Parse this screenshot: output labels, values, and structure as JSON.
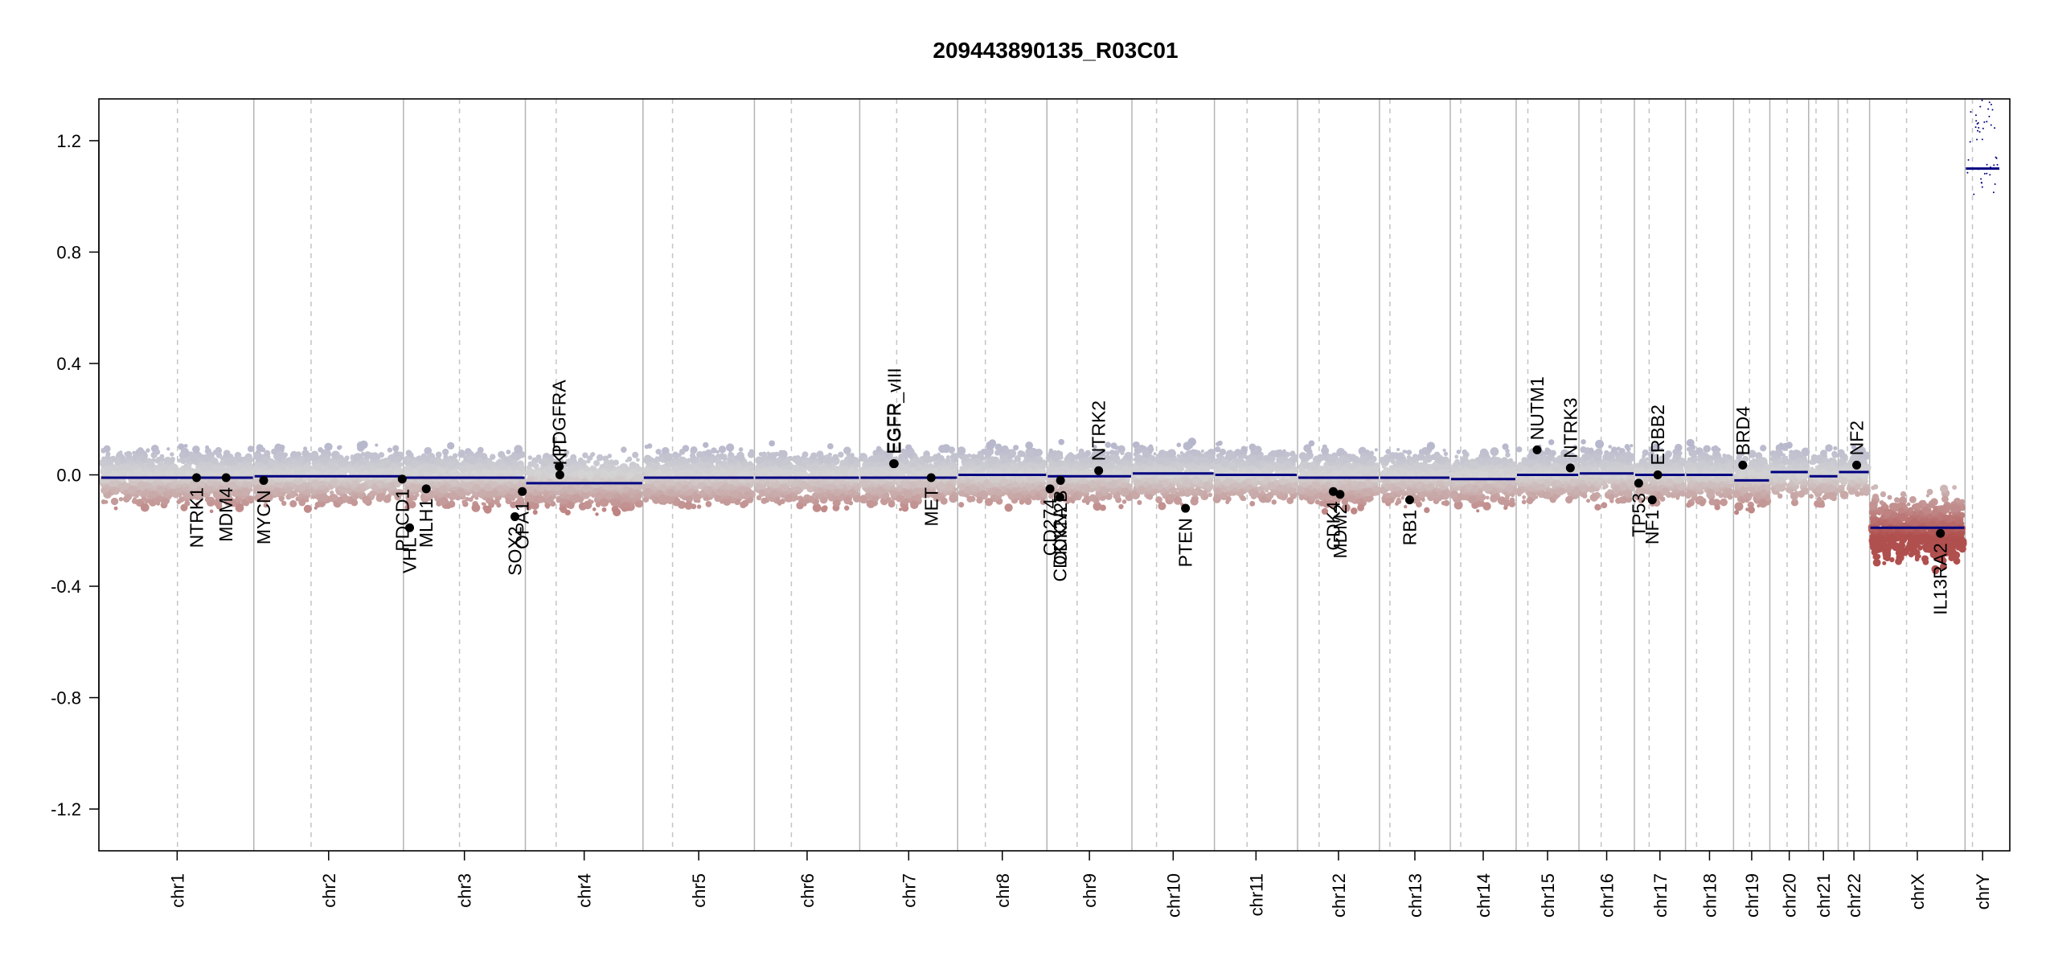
{
  "chart_data": {
    "type": "scatter",
    "title": "209443890135_R03C01",
    "xlabel": "",
    "ylabel": "",
    "ylim": [
      -1.35,
      1.35
    ],
    "y_ticks": [
      "1.2",
      "0.8",
      "0.4",
      "0.0",
      "-0.4",
      "-0.8",
      "-1.2"
    ],
    "y_tick_values": [
      1.2,
      0.8,
      0.4,
      0.0,
      -0.4,
      -0.8,
      -1.2
    ],
    "grid": "chromosome boundaries (solid) and centromeres (dashed)",
    "colors": {
      "gain": "#9a9ac6",
      "loss": "#b0504e",
      "neutral": "#d4d4d4",
      "segment": "#000080",
      "gene": "#000000",
      "frame": "#000000"
    },
    "chromosomes": [
      {
        "name": "chr1",
        "len": 249,
        "cen": 125,
        "seg": -0.01
      },
      {
        "name": "chr2",
        "len": 243,
        "cen": 93,
        "seg": -0.005
      },
      {
        "name": "chr3",
        "len": 198,
        "cen": 91,
        "seg": -0.01
      },
      {
        "name": "chr4",
        "len": 191,
        "cen": 50,
        "seg": -0.03
      },
      {
        "name": "chr5",
        "len": 181,
        "cen": 48,
        "seg": -0.01
      },
      {
        "name": "chr6",
        "len": 171,
        "cen": 60,
        "seg": -0.01
      },
      {
        "name": "chr7",
        "len": 159,
        "cen": 60,
        "seg": -0.01
      },
      {
        "name": "chr8",
        "len": 145,
        "cen": 45,
        "seg": 0.0
      },
      {
        "name": "chr9",
        "len": 138,
        "cen": 49,
        "seg": -0.005
      },
      {
        "name": "chr10",
        "len": 134,
        "cen": 40,
        "seg": 0.005
      },
      {
        "name": "chr11",
        "len": 135,
        "cen": 53,
        "seg": 0.0
      },
      {
        "name": "chr12",
        "len": 133,
        "cen": 35,
        "seg": -0.01
      },
      {
        "name": "chr13",
        "len": 115,
        "cen": 17,
        "seg": -0.01
      },
      {
        "name": "chr14",
        "len": 107,
        "cen": 17,
        "seg": -0.015
      },
      {
        "name": "chr15",
        "len": 102,
        "cen": 19,
        "seg": 0.0
      },
      {
        "name": "chr16",
        "len": 90,
        "cen": 36,
        "seg": 0.005
      },
      {
        "name": "chr17",
        "len": 83,
        "cen": 24,
        "seg": 0.0
      },
      {
        "name": "chr18",
        "len": 78,
        "cen": 18,
        "seg": 0.0
      },
      {
        "name": "chr19",
        "len": 59,
        "cen": 26,
        "seg": -0.02
      },
      {
        "name": "chr20",
        "len": 63,
        "cen": 28,
        "seg": 0.01
      },
      {
        "name": "chr21",
        "len": 48,
        "cen": 12,
        "seg": -0.005
      },
      {
        "name": "chr22",
        "len": 51,
        "cen": 15,
        "seg": 0.01
      },
      {
        "name": "chrX",
        "len": 155,
        "cen": 60,
        "seg": -0.19
      },
      {
        "name": "chrY",
        "len": 57,
        "cen": 12,
        "seg": 1.1
      }
    ],
    "genes": [
      {
        "name": "NTRK1",
        "chr": "chr1",
        "pos": 156,
        "y": -0.01,
        "label": "below"
      },
      {
        "name": "MDM4",
        "chr": "chr1",
        "pos": 204,
        "y": -0.01,
        "label": "below"
      },
      {
        "name": "MYCN",
        "chr": "chr2",
        "pos": 16,
        "y": -0.02,
        "label": "below"
      },
      {
        "name": "PDCD1",
        "chr": "chr2",
        "pos": 241,
        "y": -0.015,
        "label": "below"
      },
      {
        "name": "VHL",
        "chr": "chr3",
        "pos": 10,
        "y": -0.19,
        "label": "below"
      },
      {
        "name": "MLH1",
        "chr": "chr3",
        "pos": 37,
        "y": -0.05,
        "label": "below"
      },
      {
        "name": "SOX2",
        "chr": "chr3",
        "pos": 181,
        "y": -0.15,
        "label": "below"
      },
      {
        "name": "OPA1",
        "chr": "chr3",
        "pos": 193,
        "y": -0.06,
        "label": "below"
      },
      {
        "name": "PDGFRA",
        "chr": "chr4",
        "pos": 55,
        "y": 0.03,
        "label": "above"
      },
      {
        "name": "KIT",
        "chr": "chr4",
        "pos": 56,
        "y": 0.0,
        "label": "above"
      },
      {
        "name": "EGFR",
        "chr": "chr7",
        "pos": 55,
        "y": 0.04,
        "label": "above"
      },
      {
        "name": "EGFR_vIII",
        "chr": "chr7",
        "pos": 56,
        "y": 0.04,
        "label": "above"
      },
      {
        "name": "MET",
        "chr": "chr7",
        "pos": 116,
        "y": -0.01,
        "label": "below"
      },
      {
        "name": "CD274",
        "chr": "chr9",
        "pos": 5,
        "y": -0.05,
        "label": "below"
      },
      {
        "name": "CDKN2A",
        "chr": "chr9",
        "pos": 21,
        "y": -0.08,
        "label": "below"
      },
      {
        "name": "CDKN2B",
        "chr": "chr9",
        "pos": 22,
        "y": -0.02,
        "label": "below"
      },
      {
        "name": "NTRK2",
        "chr": "chr9",
        "pos": 84,
        "y": 0.015,
        "label": "above"
      },
      {
        "name": "PTEN",
        "chr": "chr10",
        "pos": 87,
        "y": -0.12,
        "label": "below"
      },
      {
        "name": "CDK4",
        "chr": "chr12",
        "pos": 58,
        "y": -0.06,
        "label": "below"
      },
      {
        "name": "MDM2",
        "chr": "chr12",
        "pos": 69,
        "y": -0.07,
        "label": "below"
      },
      {
        "name": "RB1",
        "chr": "chr13",
        "pos": 49,
        "y": -0.09,
        "label": "below"
      },
      {
        "name": "NUTM1",
        "chr": "chr15",
        "pos": 34,
        "y": 0.09,
        "label": "above"
      },
      {
        "name": "NTRK3",
        "chr": "chr15",
        "pos": 88,
        "y": 0.025,
        "label": "above"
      },
      {
        "name": "TP53",
        "chr": "chr17",
        "pos": 7,
        "y": -0.03,
        "label": "below"
      },
      {
        "name": "NF1",
        "chr": "chr17",
        "pos": 29,
        "y": -0.09,
        "label": "below"
      },
      {
        "name": "ERBB2",
        "chr": "chr17",
        "pos": 38,
        "y": 0.0,
        "label": "above"
      },
      {
        "name": "BRD4",
        "chr": "chr19",
        "pos": 15,
        "y": 0.035,
        "label": "above"
      },
      {
        "name": "NF2",
        "chr": "chr22",
        "pos": 30,
        "y": 0.035,
        "label": "above"
      },
      {
        "name": "IL13RA2",
        "chr": "chrX",
        "pos": 115,
        "y": -0.21,
        "label": "below"
      }
    ]
  }
}
